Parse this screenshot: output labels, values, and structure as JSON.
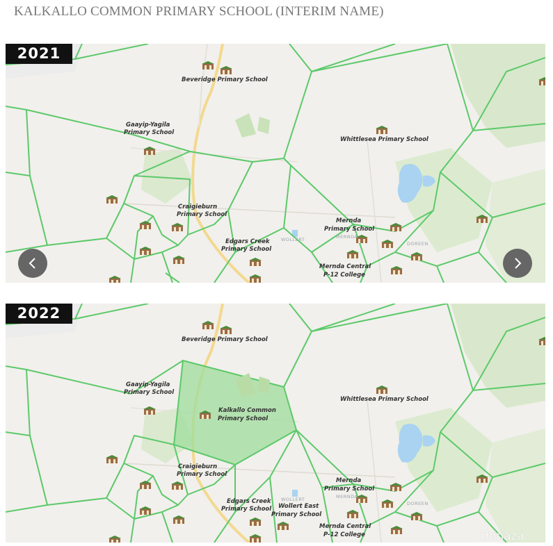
{
  "page": {
    "title": "KALKALLO COMMON PRIMARY SCHOOL (INTERIM NAME)"
  },
  "colors": {
    "boundary": "#5cc96a",
    "highlight": "#9fdc9c",
    "badge_bg": "#111111",
    "water": "#a9d3f0",
    "park": "#cfe3c2",
    "road": "#f3d98f"
  },
  "maps": [
    {
      "year": "2021",
      "schools": {
        "beveridge": "Beveridge Primary School",
        "gaayip_1": "Gaayip-Yagila",
        "gaayip_2": "Primary School",
        "whittlesea": "Whittlesea Primary School",
        "craigieburn_1": "Craigieburn",
        "craigieburn_2": "Primary School",
        "edgars_1": "Edgars Creek",
        "edgars_2": "Primary School",
        "mernda_1": "Mernda",
        "mernda_2": "Primary School",
        "mernda_central_1": "Mernda Central",
        "mernda_central_2": "P-12 College"
      },
      "places": {
        "wollert": "WOLLERT",
        "mernda": "MERNDA",
        "doreen": "DOREEN"
      }
    },
    {
      "year": "2022",
      "schools": {
        "beveridge": "Beveridge Primary School",
        "gaayip_1": "Gaayip-Yagila",
        "gaayip_2": "Primary School",
        "kalkallo_1": "Kalkallo Common",
        "kalkallo_2": "Primary School",
        "whittlesea": "Whittlesea Primary School",
        "craigieburn_1": "Craigieburn",
        "craigieburn_2": "Primary School",
        "edgars_1": "Edgars Creek",
        "edgars_2": "Primary School",
        "wollert_east_1": "Wollert East",
        "wollert_east_2": "Primary School",
        "mernda_1": "Mernda",
        "mernda_2": "Primary School",
        "mernda_central_1": "Mernda Central",
        "mernda_central_2": "P-12 College"
      },
      "places": {
        "wollert": "WOLLERT",
        "mernda": "MERNDA",
        "doreen": "DOREEN"
      }
    }
  ],
  "nav": {
    "prev_icon": "chevron-left-icon",
    "next_icon": "chevron-right-icon"
  },
  "watermark": "Chinaza"
}
